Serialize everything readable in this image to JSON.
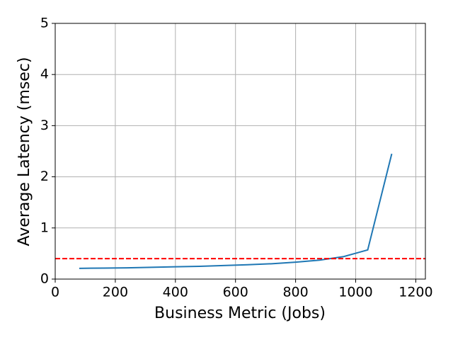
{
  "chart_data": {
    "type": "line",
    "xlabel": "Business Metric (Jobs)",
    "ylabel": "Average Latency (msec)",
    "x": [
      80,
      160,
      240,
      320,
      400,
      480,
      560,
      640,
      720,
      800,
      880,
      960,
      1040,
      1120
    ],
    "series": [
      {
        "color": "#1f77b4",
        "values": [
          0.21,
          0.215,
          0.22,
          0.23,
          0.24,
          0.25,
          0.265,
          0.28,
          0.3,
          0.33,
          0.37,
          0.44,
          0.57,
          2.45
        ]
      }
    ],
    "threshold": {
      "value": 0.4,
      "color": "#ff0000"
    },
    "xlim": [
      0,
      1232
    ],
    "ylim": [
      0,
      5
    ],
    "xticks": [
      0,
      200,
      400,
      600,
      800,
      1000,
      1200
    ],
    "yticks": [
      0,
      1,
      2,
      3,
      4,
      5
    ],
    "grid": true
  }
}
